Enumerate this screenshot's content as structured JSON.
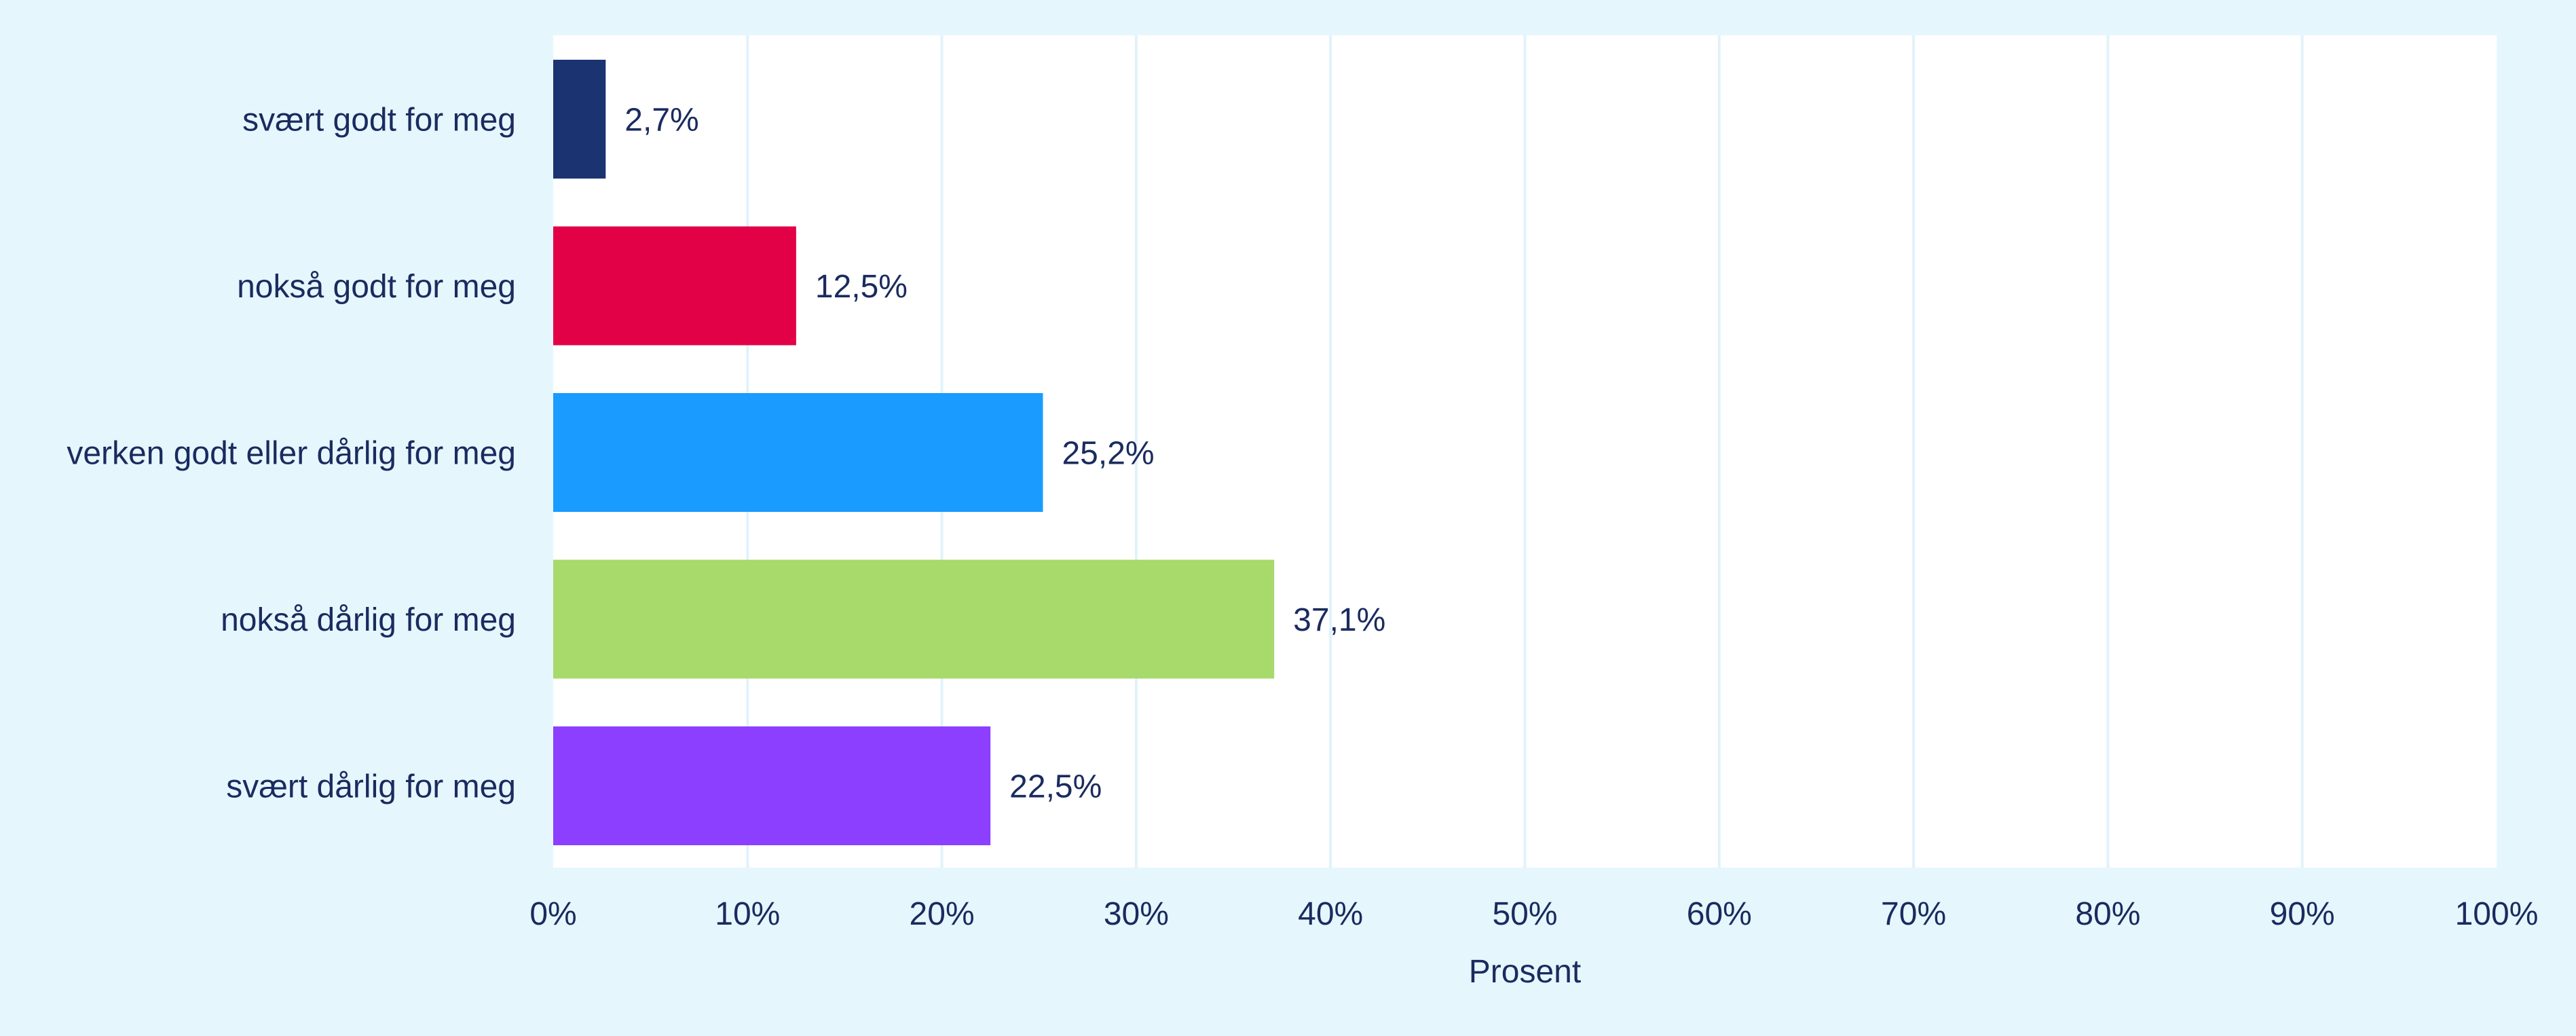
{
  "chart_data": {
    "type": "bar",
    "orientation": "horizontal",
    "categories": [
      "svært godt for meg",
      "nokså godt for meg",
      "verken godt eller dårlig for meg",
      "nokså dårlig for meg",
      "svært dårlig for meg"
    ],
    "values": [
      2.7,
      12.5,
      25.2,
      37.1,
      22.5
    ],
    "value_labels": [
      "2,7%",
      "12,5%",
      "25,2%",
      "37,1%",
      "22,5%"
    ],
    "bar_colors": [
      "#1b3370",
      "#e20046",
      "#1a9bff",
      "#a8d96b",
      "#8c3fff"
    ],
    "xlabel": "Prosent",
    "ylabel": "",
    "xlim": [
      0,
      100
    ],
    "xticks": [
      0,
      10,
      20,
      30,
      40,
      50,
      60,
      70,
      80,
      90,
      100
    ],
    "xtick_labels": [
      "0%",
      "10%",
      "20%",
      "30%",
      "40%",
      "50%",
      "60%",
      "70%",
      "80%",
      "90%",
      "100%"
    ],
    "grid": "vertical",
    "legend": "none"
  },
  "colors": {
    "background": "#e6f6fd",
    "plot_background": "#ffffff",
    "gridline": "#e1f2fb",
    "text": "#1a2b5f"
  }
}
